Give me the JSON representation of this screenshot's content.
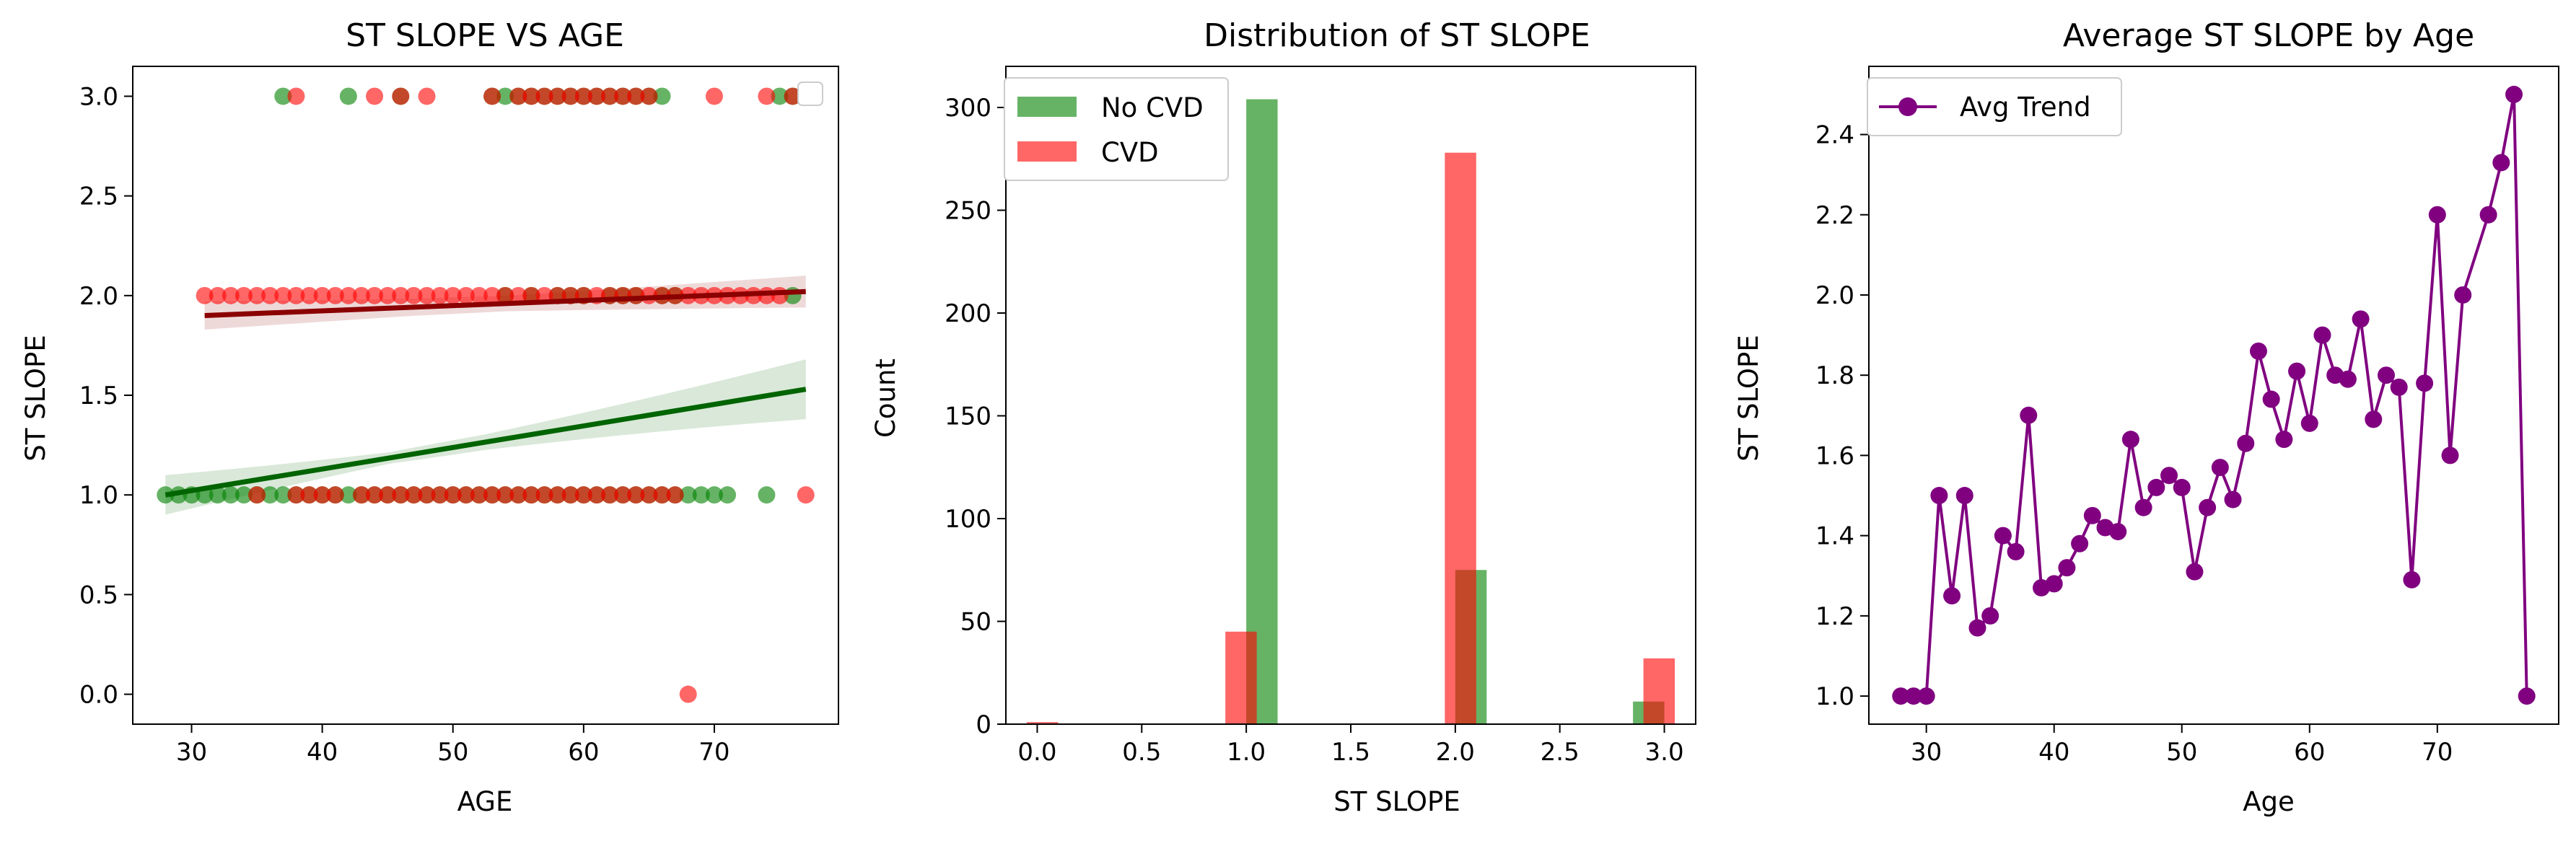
{
  "chart_data": [
    {
      "type": "scatter",
      "title": "ST SLOPE VS AGE",
      "xlabel": "AGE",
      "ylabel": "ST SLOPE",
      "xlim": [
        25.5,
        79.5
      ],
      "ylim": [
        -0.15,
        3.15
      ],
      "xticks": [
        "30",
        "40",
        "50",
        "60",
        "70"
      ],
      "yticks": [
        "0.0",
        "0.5",
        "1.0",
        "1.5",
        "2.0",
        "2.5",
        "3.0"
      ],
      "legend": "top-right (empty)",
      "colors": {
        "no_cvd": "#008000",
        "cvd": "#ff0000",
        "no_cvd_fit": "#006400",
        "cvd_fit": "#8b0000"
      },
      "series": [
        {
          "key": "no_cvd",
          "points": [
            [
              28,
              1
            ],
            [
              29,
              1
            ],
            [
              30,
              1
            ],
            [
              31,
              1
            ],
            [
              32,
              1
            ],
            [
              33,
              1
            ],
            [
              34,
              1
            ],
            [
              35,
              1
            ],
            [
              36,
              1
            ],
            [
              37,
              1
            ],
            [
              38,
              1
            ],
            [
              39,
              1
            ],
            [
              40,
              1
            ],
            [
              41,
              1
            ],
            [
              42,
              1
            ],
            [
              43,
              1
            ],
            [
              44,
              1
            ],
            [
              45,
              1
            ],
            [
              46,
              1
            ],
            [
              47,
              1
            ],
            [
              48,
              1
            ],
            [
              49,
              1
            ],
            [
              50,
              1
            ],
            [
              51,
              1
            ],
            [
              52,
              1
            ],
            [
              53,
              1
            ],
            [
              54,
              1
            ],
            [
              55,
              1
            ],
            [
              56,
              1
            ],
            [
              57,
              1
            ],
            [
              58,
              1
            ],
            [
              59,
              1
            ],
            [
              60,
              1
            ],
            [
              61,
              1
            ],
            [
              62,
              1
            ],
            [
              63,
              1
            ],
            [
              64,
              1
            ],
            [
              65,
              1
            ],
            [
              66,
              1
            ],
            [
              67,
              1
            ],
            [
              68,
              1
            ],
            [
              69,
              1
            ],
            [
              70,
              1
            ],
            [
              71,
              1
            ],
            [
              74,
              1
            ],
            [
              37,
              3
            ],
            [
              42,
              3
            ],
            [
              46,
              3
            ],
            [
              53,
              3
            ],
            [
              54,
              3
            ],
            [
              55,
              3
            ],
            [
              56,
              3
            ],
            [
              57,
              3
            ],
            [
              58,
              3
            ],
            [
              59,
              3
            ],
            [
              60,
              3
            ],
            [
              61,
              3
            ],
            [
              62,
              3
            ],
            [
              63,
              3
            ],
            [
              64,
              3
            ],
            [
              65,
              3
            ],
            [
              66,
              3
            ],
            [
              75,
              3
            ],
            [
              76,
              3
            ],
            [
              54,
              2
            ],
            [
              56,
              2
            ],
            [
              58,
              2
            ],
            [
              59,
              2
            ],
            [
              60,
              2
            ],
            [
              62,
              2
            ],
            [
              63,
              2
            ],
            [
              64,
              2
            ],
            [
              66,
              2
            ],
            [
              67,
              2
            ],
            [
              76,
              2
            ]
          ],
          "fit": [
            [
              28,
              1.0
            ],
            [
              77,
              1.53
            ]
          ]
        },
        {
          "key": "cvd",
          "points": [
            [
              31,
              2
            ],
            [
              32,
              2
            ],
            [
              33,
              2
            ],
            [
              34,
              2
            ],
            [
              35,
              2
            ],
            [
              36,
              2
            ],
            [
              37,
              2
            ],
            [
              38,
              2
            ],
            [
              39,
              2
            ],
            [
              40,
              2
            ],
            [
              41,
              2
            ],
            [
              42,
              2
            ],
            [
              43,
              2
            ],
            [
              44,
              2
            ],
            [
              45,
              2
            ],
            [
              46,
              2
            ],
            [
              47,
              2
            ],
            [
              48,
              2
            ],
            [
              49,
              2
            ],
            [
              50,
              2
            ],
            [
              51,
              2
            ],
            [
              52,
              2
            ],
            [
              53,
              2
            ],
            [
              54,
              2
            ],
            [
              55,
              2
            ],
            [
              56,
              2
            ],
            [
              57,
              2
            ],
            [
              58,
              2
            ],
            [
              59,
              2
            ],
            [
              60,
              2
            ],
            [
              61,
              2
            ],
            [
              62,
              2
            ],
            [
              63,
              2
            ],
            [
              64,
              2
            ],
            [
              65,
              2
            ],
            [
              66,
              2
            ],
            [
              67,
              2
            ],
            [
              68,
              2
            ],
            [
              69,
              2
            ],
            [
              70,
              2
            ],
            [
              71,
              2
            ],
            [
              72,
              2
            ],
            [
              73,
              2
            ],
            [
              74,
              2
            ],
            [
              75,
              2
            ],
            [
              35,
              1
            ],
            [
              38,
              1
            ],
            [
              39,
              1
            ],
            [
              40,
              1
            ],
            [
              41,
              1
            ],
            [
              43,
              1
            ],
            [
              44,
              1
            ],
            [
              45,
              1
            ],
            [
              46,
              1
            ],
            [
              47,
              1
            ],
            [
              48,
              1
            ],
            [
              49,
              1
            ],
            [
              50,
              1
            ],
            [
              51,
              1
            ],
            [
              52,
              1
            ],
            [
              53,
              1
            ],
            [
              54,
              1
            ],
            [
              55,
              1
            ],
            [
              56,
              1
            ],
            [
              57,
              1
            ],
            [
              58,
              1
            ],
            [
              59,
              1
            ],
            [
              60,
              1
            ],
            [
              61,
              1
            ],
            [
              62,
              1
            ],
            [
              63,
              1
            ],
            [
              64,
              1
            ],
            [
              65,
              1
            ],
            [
              66,
              1
            ],
            [
              67,
              1
            ],
            [
              77,
              1
            ],
            [
              38,
              3
            ],
            [
              44,
              3
            ],
            [
              46,
              3
            ],
            [
              48,
              3
            ],
            [
              53,
              3
            ],
            [
              55,
              3
            ],
            [
              56,
              3
            ],
            [
              57,
              3
            ],
            [
              58,
              3
            ],
            [
              59,
              3
            ],
            [
              60,
              3
            ],
            [
              61,
              3
            ],
            [
              62,
              3
            ],
            [
              63,
              3
            ],
            [
              64,
              3
            ],
            [
              65,
              3
            ],
            [
              70,
              3
            ],
            [
              74,
              3
            ],
            [
              76,
              3
            ],
            [
              68,
              0
            ]
          ],
          "fit": [
            [
              31,
              1.9
            ],
            [
              77,
              2.02
            ]
          ]
        }
      ]
    },
    {
      "type": "bar",
      "title": "Distribution of ST SLOPE",
      "xlabel": "ST SLOPE",
      "ylabel": "Count",
      "xlim": [
        -0.15,
        3.15
      ],
      "ylim": [
        0,
        320
      ],
      "xticks": [
        "0.0",
        "0.5",
        "1.0",
        "1.5",
        "2.0",
        "2.5",
        "3.0"
      ],
      "yticks": [
        "0",
        "50",
        "100",
        "150",
        "200",
        "250",
        "300"
      ],
      "legend": "top-left",
      "bin_width": 0.15,
      "series": [
        {
          "name": "No CVD",
          "color": "#008000",
          "bins": [
            [
              1.0,
              304
            ],
            [
              2.0,
              75
            ],
            [
              2.85,
              11
            ]
          ]
        },
        {
          "name": "CVD",
          "color": "#ff0000",
          "bins": [
            [
              -0.05,
              1
            ],
            [
              0.9,
              45
            ],
            [
              1.95,
              278
            ],
            [
              2.9,
              32
            ]
          ]
        }
      ]
    },
    {
      "type": "line",
      "title": "Average ST SLOPE by Age",
      "xlabel": "Age",
      "ylabel": "ST SLOPE",
      "xlim": [
        25.5,
        79.5
      ],
      "ylim": [
        0.93,
        2.57
      ],
      "xticks": [
        "30",
        "40",
        "50",
        "60",
        "70"
      ],
      "yticks": [
        "1.0",
        "1.2",
        "1.4",
        "1.6",
        "1.8",
        "2.0",
        "2.2",
        "2.4"
      ],
      "legend": "top-left",
      "series": [
        {
          "name": "Avg Trend",
          "color": "#800080",
          "x": [
            28,
            29,
            30,
            31,
            32,
            33,
            34,
            35,
            36,
            37,
            38,
            39,
            40,
            41,
            42,
            43,
            44,
            45,
            46,
            47,
            48,
            49,
            50,
            51,
            52,
            53,
            54,
            55,
            56,
            57,
            58,
            59,
            60,
            61,
            62,
            63,
            64,
            65,
            66,
            67,
            68,
            69,
            70,
            71,
            72,
            74,
            75,
            76,
            77
          ],
          "y": [
            1.0,
            1.0,
            1.0,
            1.5,
            1.25,
            1.5,
            1.17,
            1.2,
            1.4,
            1.36,
            1.7,
            1.27,
            1.28,
            1.32,
            1.38,
            1.45,
            1.42,
            1.41,
            1.64,
            1.47,
            1.52,
            1.55,
            1.52,
            1.31,
            1.47,
            1.57,
            1.49,
            1.63,
            1.86,
            1.74,
            1.64,
            1.81,
            1.68,
            1.9,
            1.8,
            1.79,
            1.94,
            1.69,
            1.8,
            1.77,
            1.29,
            1.78,
            2.2,
            1.6,
            2.0,
            2.2,
            2.33,
            2.5,
            1.0
          ]
        }
      ]
    }
  ]
}
